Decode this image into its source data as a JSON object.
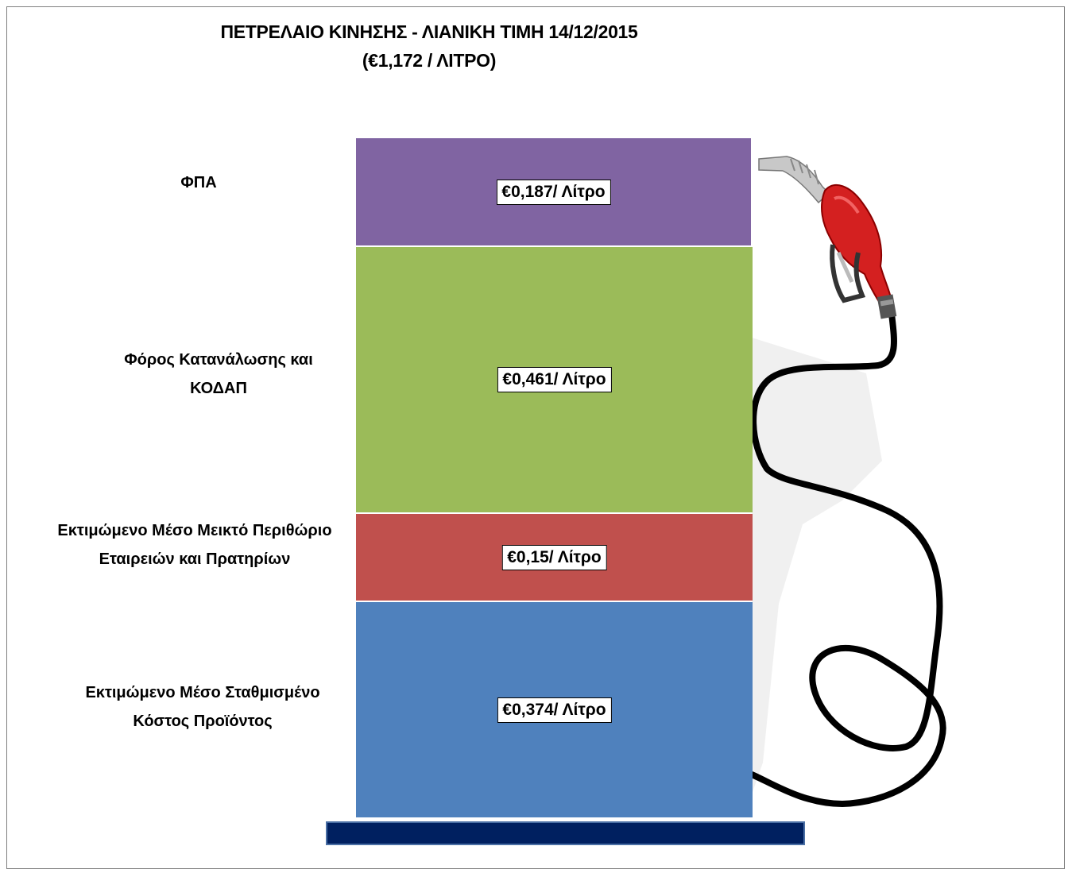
{
  "chart_data": {
    "type": "bar",
    "title": "ΠΕΤΡΕΛΑΙΟ ΚΙΝΗΣΗΣ - ΛΙΑΝΙΚΗ ΤΙΜΗ 14/12/2015",
    "subtitle": "(€1,172 / ΛΙΤΡΟ)",
    "stacked": true,
    "unit": "€/λίτρο",
    "segments": [
      {
        "id": "vat",
        "label_lines": [
          "ΦΠΑ"
        ],
        "value": 0.187,
        "value_label": "€0,187/ Λίτρο",
        "color": "#8064a2"
      },
      {
        "id": "tax",
        "label_lines": [
          "Φόρος Κατανάλωσης και",
          "ΚΟΔΑΠ"
        ],
        "value": 0.461,
        "value_label": "€0,461/ Λίτρο",
        "color": "#9bbb59"
      },
      {
        "id": "margin",
        "label_lines": [
          "Εκτιμώμενο Μέσο Μεικτό Περιθώριο",
          "Εταιρειών και Πρατηρίων"
        ],
        "value": 0.15,
        "value_label": "€0,15/ Λίτρο",
        "color": "#c0504d"
      },
      {
        "id": "cost",
        "label_lines": [
          "Εκτιμώμενο Μέσο Σταθμισμένο",
          "Κόστος Προϊόντος"
        ],
        "value": 0.374,
        "value_label": "€0,374/ Λίτρο",
        "color": "#4f81bd"
      }
    ]
  },
  "decor": {
    "base_color": "#002060",
    "nozzle_icon": "fuel-nozzle-icon",
    "hose_icon": "fuel-hose-icon"
  }
}
